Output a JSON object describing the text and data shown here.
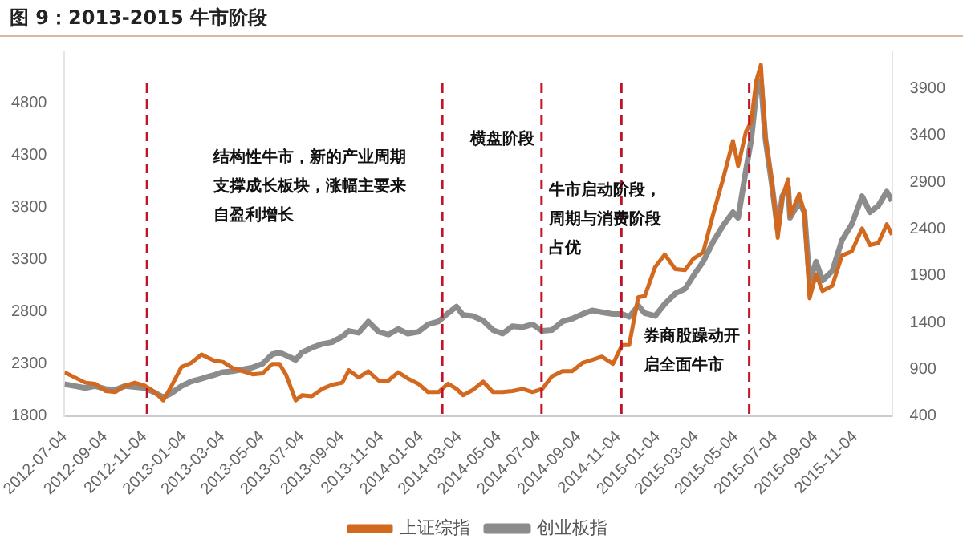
{
  "chart_data": {
    "type": "line",
    "title": "图 9：2013-2015 牛市阶段",
    "x": [
      "2012-07-04",
      "2012-07-20",
      "2012-08-05",
      "2012-08-20",
      "2012-09-05",
      "2012-09-20",
      "2012-10-05",
      "2012-10-20",
      "2012-11-05",
      "2012-11-20",
      "2012-12-03",
      "2012-12-15",
      "2012-12-31",
      "2013-01-15",
      "2013-01-31",
      "2013-02-20",
      "2013-03-05",
      "2013-03-20",
      "2013-04-05",
      "2013-04-20",
      "2013-05-05",
      "2013-05-20",
      "2013-05-31",
      "2013-06-10",
      "2013-06-25",
      "2013-07-05",
      "2013-07-20",
      "2013-08-05",
      "2013-08-20",
      "2013-09-05",
      "2013-09-15",
      "2013-09-30",
      "2013-10-15",
      "2013-10-31",
      "2013-11-15",
      "2013-11-30",
      "2013-12-15",
      "2013-12-31",
      "2014-01-15",
      "2014-01-31",
      "2014-02-15",
      "2014-02-28",
      "2014-03-10",
      "2014-03-25",
      "2014-04-10",
      "2014-04-25",
      "2014-05-10",
      "2014-05-25",
      "2014-06-10",
      "2014-06-25",
      "2014-07-10",
      "2014-07-25",
      "2014-08-10",
      "2014-08-25",
      "2014-09-10",
      "2014-09-25",
      "2014-10-10",
      "2014-10-27",
      "2014-11-10",
      "2014-11-21",
      "2014-12-05",
      "2014-12-15",
      "2014-12-31",
      "2015-01-15",
      "2015-01-31",
      "2015-02-15",
      "2015-02-28",
      "2015-03-15",
      "2015-03-31",
      "2015-04-15",
      "2015-04-30",
      "2015-05-08",
      "2015-05-20",
      "2015-05-28",
      "2015-06-05",
      "2015-06-12",
      "2015-06-19",
      "2015-06-29",
      "2015-07-08",
      "2015-07-15",
      "2015-07-24",
      "2015-07-27",
      "2015-08-10",
      "2015-08-18",
      "2015-08-26",
      "2015-09-05",
      "2015-09-15",
      "2015-09-30",
      "2015-10-15",
      "2015-10-30",
      "2015-11-15",
      "2015-11-27",
      "2015-12-10",
      "2015-12-23",
      "2015-12-31"
    ],
    "series": [
      {
        "name": "上证综指",
        "color": "#d2691e",
        "axis": "y",
        "values": [
          2220,
          2170,
          2120,
          2110,
          2040,
          2030,
          2090,
          2120,
          2090,
          2030,
          1950,
          2080,
          2270,
          2310,
          2390,
          2330,
          2320,
          2260,
          2230,
          2200,
          2210,
          2300,
          2300,
          2200,
          1950,
          2000,
          1990,
          2060,
          2100,
          2120,
          2240,
          2170,
          2230,
          2140,
          2140,
          2220,
          2160,
          2110,
          2030,
          2030,
          2110,
          2060,
          2000,
          2050,
          2130,
          2030,
          2030,
          2040,
          2060,
          2030,
          2060,
          2180,
          2230,
          2230,
          2310,
          2340,
          2370,
          2300,
          2480,
          2480,
          2940,
          2950,
          3230,
          3350,
          3210,
          3200,
          3310,
          3370,
          3750,
          4080,
          4440,
          4200,
          4530,
          4620,
          5020,
          5170,
          4480,
          4050,
          3510,
          3900,
          4070,
          3720,
          3930,
          3750,
          2930,
          3160,
          3000,
          3050,
          3340,
          3380,
          3600,
          3440,
          3460,
          3640,
          3540
        ]
      },
      {
        "name": "创业板指",
        "color": "#8c8c8c",
        "axis": "y2",
        "values": [
          740,
          720,
          700,
          720,
          690,
          680,
          720,
          710,
          700,
          650,
          600,
          640,
          720,
          770,
          800,
          840,
          870,
          880,
          900,
          920,
          960,
          1060,
          1080,
          1050,
          1000,
          1080,
          1130,
          1170,
          1190,
          1250,
          1310,
          1290,
          1410,
          1300,
          1270,
          1330,
          1280,
          1300,
          1380,
          1410,
          1500,
          1570,
          1480,
          1470,
          1420,
          1320,
          1280,
          1360,
          1350,
          1380,
          1310,
          1320,
          1410,
          1440,
          1490,
          1530,
          1510,
          1490,
          1490,
          1460,
          1580,
          1500,
          1470,
          1600,
          1710,
          1760,
          1900,
          2050,
          2270,
          2440,
          2580,
          2520,
          3030,
          3350,
          3860,
          3990,
          3360,
          2870,
          2390,
          2750,
          2850,
          2520,
          2690,
          2580,
          1840,
          2050,
          1850,
          1950,
          2280,
          2450,
          2750,
          2580,
          2650,
          2800,
          2700
        ]
      }
    ],
    "xlim": [
      "2012-07-04",
      "2015-12-31"
    ],
    "xticks": [
      "2012-07-04",
      "2012-09-04",
      "2012-11-04",
      "2013-01-04",
      "2013-03-04",
      "2013-05-04",
      "2013-07-04",
      "2013-09-04",
      "2013-11-04",
      "2014-01-04",
      "2014-03-04",
      "2014-05-04",
      "2014-07-04",
      "2014-09-04",
      "2014-11-04",
      "2015-01-04",
      "2015-03-04",
      "2015-05-04",
      "2015-07-04",
      "2015-09-04",
      "2015-11-04"
    ],
    "ylim": [
      1800,
      5300
    ],
    "yticks": [
      1800,
      2300,
      2800,
      3300,
      3800,
      4300,
      4800
    ],
    "y2lim": [
      400,
      4300
    ],
    "y2ticks": [
      400,
      900,
      1400,
      1900,
      2400,
      2900,
      3400,
      3900
    ],
    "ref_lines": [
      {
        "axis": "x",
        "value": "2012-11-08",
        "color": "#c0142a",
        "line_style": "dashed"
      },
      {
        "axis": "x",
        "value": "2014-02-06",
        "color": "#c0142a",
        "line_style": "dashed"
      },
      {
        "axis": "x",
        "value": "2014-07-09",
        "color": "#c0142a",
        "line_style": "dashed"
      },
      {
        "axis": "x",
        "value": "2014-11-09",
        "color": "#c0142a",
        "line_style": "dashed"
      },
      {
        "axis": "x",
        "value": "2015-05-25",
        "color": "#c0142a",
        "line_style": "dashed"
      }
    ],
    "annotations": [
      "结构性牛市，新的产业周期支撑成长板块，涨幅主要来自盈利增长",
      "横盘阶段",
      "牛市启动阶段，周期与消费阶段占优",
      "券商股躁动开启全面牛市"
    ],
    "legend": "bottom",
    "marker": "none",
    "line_style": "solid"
  }
}
